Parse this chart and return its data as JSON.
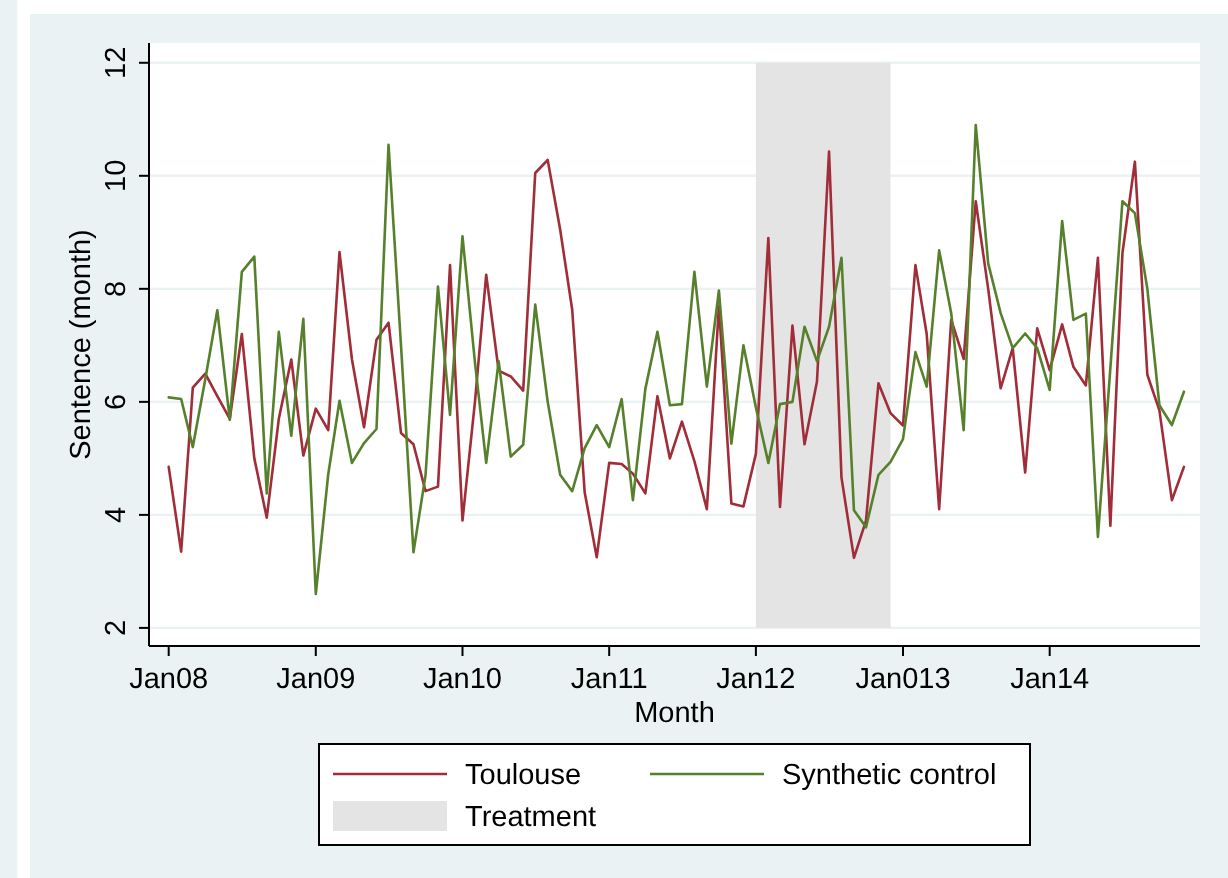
{
  "chart_data": {
    "type": "line",
    "xlabel": "Month",
    "ylabel": "Sentence (month)",
    "x": [
      "2008-01",
      "2008-02",
      "2008-03",
      "2008-04",
      "2008-05",
      "2008-06",
      "2008-07",
      "2008-08",
      "2008-09",
      "2008-10",
      "2008-11",
      "2008-12",
      "2009-01",
      "2009-02",
      "2009-03",
      "2009-04",
      "2009-05",
      "2009-06",
      "2009-07",
      "2009-08",
      "2009-09",
      "2009-10",
      "2009-11",
      "2009-12",
      "2010-01",
      "2010-02",
      "2010-03",
      "2010-04",
      "2010-05",
      "2010-06",
      "2010-07",
      "2010-08",
      "2010-09",
      "2010-10",
      "2010-11",
      "2010-12",
      "2011-01",
      "2011-02",
      "2011-03",
      "2011-04",
      "2011-05",
      "2011-06",
      "2011-07",
      "2011-08",
      "2011-09",
      "2011-10",
      "2011-11",
      "2011-12",
      "2012-01",
      "2012-02",
      "2012-03",
      "2012-04",
      "2012-05",
      "2012-06",
      "2012-07",
      "2012-08",
      "2012-09",
      "2012-10",
      "2012-11",
      "2012-12",
      "2013-01",
      "2013-02",
      "2013-03",
      "2013-04",
      "2013-05",
      "2013-06",
      "2013-07",
      "2013-08",
      "2013-09",
      "2013-10",
      "2013-11",
      "2013-12",
      "2014-01",
      "2014-02",
      "2014-03",
      "2014-04",
      "2014-05",
      "2014-06",
      "2014-07",
      "2014-08",
      "2014-09",
      "2014-10",
      "2014-11",
      "2014-12"
    ],
    "series": [
      {
        "name": "Toulouse",
        "color": "#a02d38",
        "values": [
          4.85,
          3.35,
          6.25,
          6.5,
          6.1,
          5.7,
          7.2,
          5.0,
          3.95,
          5.7,
          6.75,
          5.05,
          5.88,
          5.5,
          8.65,
          6.75,
          5.55,
          7.1,
          7.4,
          5.45,
          5.25,
          4.42,
          4.5,
          8.42,
          3.9,
          6.0,
          8.25,
          6.55,
          6.45,
          6.2,
          10.05,
          10.28,
          9.05,
          7.63,
          4.4,
          3.25,
          4.92,
          4.9,
          4.73,
          4.38,
          6.1,
          5.0,
          5.65,
          4.95,
          4.1,
          7.7,
          4.2,
          4.15,
          5.08,
          8.9,
          4.14,
          7.35,
          5.25,
          6.36,
          10.43,
          4.66,
          3.24,
          3.9,
          6.33,
          5.8,
          5.58,
          8.42,
          7.2,
          4.1,
          7.45,
          6.76,
          9.55,
          8.0,
          6.24,
          6.95,
          4.75,
          7.3,
          6.56,
          7.37,
          6.62,
          6.29,
          8.55,
          3.81,
          8.63,
          10.25,
          6.48,
          5.85,
          4.26,
          4.85
        ]
      },
      {
        "name": "Synthetic control",
        "color": "#56802b",
        "values": [
          6.08,
          6.05,
          5.2,
          6.4,
          7.62,
          5.68,
          8.3,
          8.57,
          4.38,
          7.24,
          5.4,
          7.47,
          2.6,
          4.72,
          6.02,
          4.92,
          5.27,
          5.52,
          10.55,
          7.0,
          3.34,
          4.7,
          8.04,
          5.77,
          8.93,
          6.7,
          4.92,
          6.72,
          5.03,
          5.24,
          7.72,
          6.0,
          4.71,
          4.42,
          5.18,
          5.59,
          5.2,
          6.05,
          4.26,
          6.23,
          7.24,
          5.94,
          5.96,
          8.3,
          6.27,
          7.97,
          5.26,
          7.0,
          5.9,
          4.92,
          5.96,
          6.0,
          7.33,
          6.72,
          7.33,
          8.55,
          4.08,
          3.78,
          4.71,
          4.94,
          5.34,
          6.88,
          6.27,
          8.68,
          7.57,
          5.5,
          10.9,
          8.45,
          7.57,
          6.95,
          7.21,
          6.95,
          6.21,
          9.2,
          7.45,
          7.56,
          3.61,
          6.6,
          9.55,
          9.34,
          8.0,
          5.94,
          5.59,
          6.18
        ]
      }
    ],
    "bands": [
      {
        "axis": "x",
        "from": "2012-01",
        "to": "2012-12",
        "label": "Treatment",
        "color": "#e4e4e4"
      }
    ],
    "xlim": [
      "2007-11-13",
      "2015-01-10"
    ],
    "xticks": [
      {
        "value": "2008-01",
        "label": "Jan08"
      },
      {
        "value": "2009-01",
        "label": "Jan09"
      },
      {
        "value": "2010-01",
        "label": "Jan10"
      },
      {
        "value": "2011-01",
        "label": "Jan11"
      },
      {
        "value": "2012-01",
        "label": "Jan12"
      },
      {
        "value": "2013-01",
        "label": "Jan013"
      },
      {
        "value": "2014-01",
        "label": "Jan14"
      }
    ],
    "ylim": [
      1.68,
      12.35
    ],
    "yticks": [
      2,
      4,
      6,
      8,
      10,
      12
    ],
    "grid": "y",
    "legend": "bottom"
  }
}
